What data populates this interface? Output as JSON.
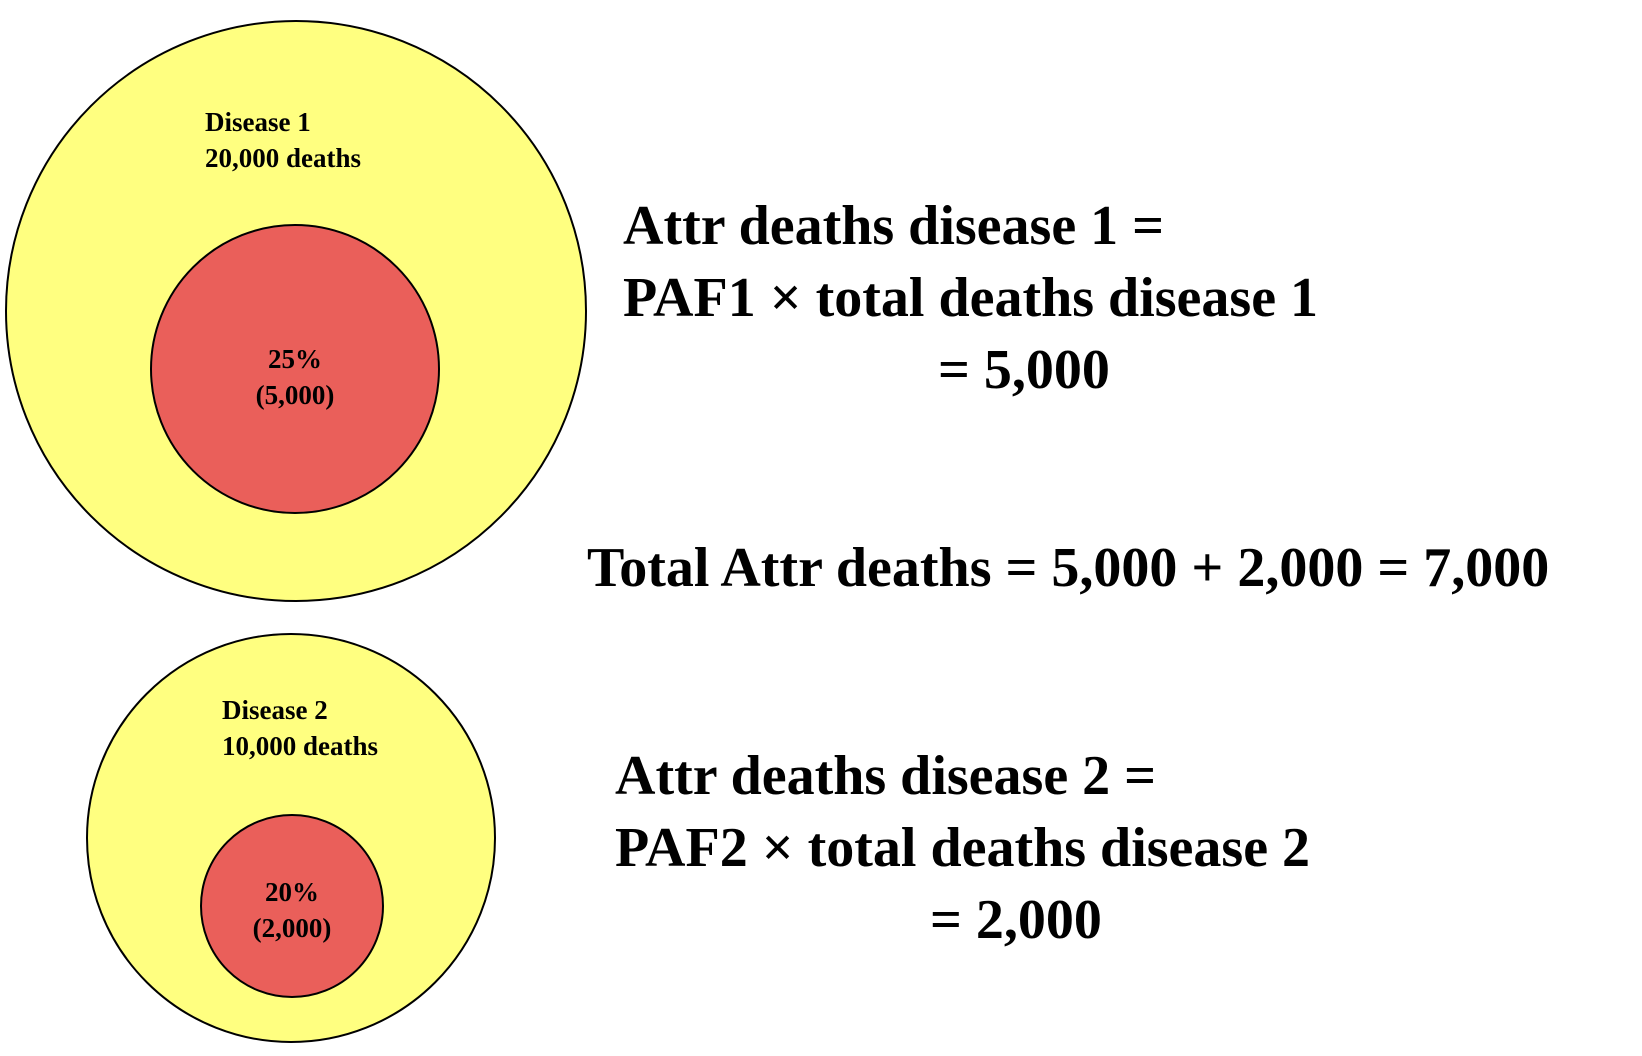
{
  "colors": {
    "outer_fill": "#ffff80",
    "inner_fill": "#ea5f5a",
    "stroke": "#000000"
  },
  "disease1": {
    "name": "Disease 1",
    "deaths": "20,000 deaths",
    "percent": "25%",
    "attributable": "(5,000)",
    "attributable_fraction": 0.25
  },
  "disease2": {
    "name": "Disease 2",
    "deaths": "10,000 deaths",
    "percent": "20%",
    "attributable": "(2,000)",
    "attributable_fraction": 0.2
  },
  "formula1": {
    "line1": "Attr deaths disease 1 =",
    "line2": "PAF1 × total deaths disease 1",
    "line3": "= 5,000"
  },
  "total": "Total Attr deaths = 5,000 + 2,000 = 7,000",
  "formula2": {
    "line1": "Attr deaths disease 2 =",
    "line2": "PAF2 × total deaths disease 2",
    "line3": "= 2,000"
  }
}
